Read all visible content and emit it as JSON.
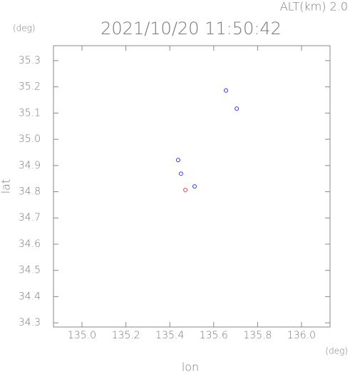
{
  "chart_data": {
    "type": "scatter",
    "title": "2021/10/20 11:50:42",
    "subtitle": "ALT(km) 2.0",
    "y_unit": "(deg)",
    "x_unit": "(deg)",
    "xlabel": "lon",
    "ylabel": "lat",
    "xlim": [
      134.87,
      136.13
    ],
    "ylim": [
      34.284,
      35.357
    ],
    "xticks": [
      {
        "value": 135.0,
        "label": "135.0"
      },
      135.2,
      135.4,
      135.6,
      135.8,
      {
        "value": 136.0,
        "label": "136.0"
      }
    ],
    "yticks": [
      35.3,
      35.2,
      35.1,
      {
        "value": 35.0,
        "label": "35.0"
      },
      34.9,
      34.8,
      34.7,
      34.6,
      34.5,
      34.4,
      34.3
    ],
    "grid": false,
    "series": [
      {
        "color": "#3333ff",
        "x": [
          135.656,
          135.705,
          135.438,
          135.451,
          135.513
        ],
        "values": [
          35.186,
          35.117,
          34.921,
          34.869,
          34.82
        ]
      },
      {
        "color": "#ff3366",
        "x": [
          135.471
        ],
        "values": [
          34.807
        ]
      }
    ]
  }
}
